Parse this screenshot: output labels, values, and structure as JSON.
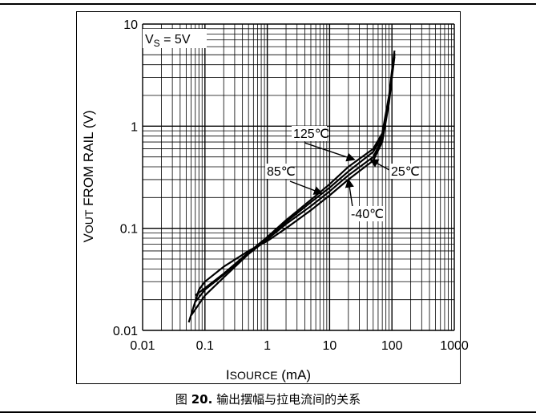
{
  "caption": {
    "prefix": "图",
    "number": "20.",
    "text": "输出摆幅与拉电流间的关系"
  },
  "chart_data": {
    "type": "line",
    "x_scale": "log",
    "y_scale": "log",
    "xlim": [
      0.01,
      1000
    ],
    "ylim": [
      0.01,
      10
    ],
    "grid": true,
    "x_ticks": [
      "0.01",
      "0.1",
      "1",
      "10",
      "100",
      "1000"
    ],
    "y_ticks": [
      "0.01",
      "0.1",
      "1",
      "10"
    ],
    "xlabel": {
      "main": "I",
      "sub": "SOURCE",
      "unit": " (mA)"
    },
    "ylabel": {
      "main": "V",
      "sub": "OUT",
      "rest": " FROM RAIL (V)"
    },
    "condition": {
      "main": "V",
      "sub": "S",
      "rest": " = 5V"
    },
    "series": [
      {
        "name": "125℃",
        "x": [
          0.07,
          0.1,
          0.2,
          0.5,
          1,
          2,
          5,
          10,
          20,
          50,
          70,
          90,
          100,
          110
        ],
        "y": [
          0.022,
          0.026,
          0.036,
          0.058,
          0.082,
          0.12,
          0.19,
          0.27,
          0.4,
          0.6,
          0.85,
          2.0,
          3.5,
          5.5
        ]
      },
      {
        "name": "85℃",
        "x": [
          0.07,
          0.1,
          0.2,
          0.5,
          1,
          2,
          5,
          10,
          20,
          50,
          70,
          90,
          100,
          110
        ],
        "y": [
          0.019,
          0.025,
          0.035,
          0.057,
          0.08,
          0.115,
          0.18,
          0.25,
          0.36,
          0.56,
          0.8,
          1.9,
          3.3,
          5.2
        ]
      },
      {
        "name": "25℃",
        "x": [
          0.06,
          0.1,
          0.2,
          0.5,
          1,
          2,
          5,
          10,
          20,
          50,
          70,
          90,
          100,
          110
        ],
        "y": [
          0.014,
          0.022,
          0.033,
          0.056,
          0.078,
          0.11,
          0.165,
          0.23,
          0.33,
          0.5,
          0.75,
          1.8,
          3.2,
          5.0
        ]
      },
      {
        "name": "-40℃",
        "x": [
          0.055,
          0.08,
          0.1,
          0.2,
          0.5,
          1,
          2,
          5,
          10,
          20,
          50,
          70,
          90,
          100,
          110
        ],
        "y": [
          0.012,
          0.025,
          0.03,
          0.042,
          0.06,
          0.075,
          0.1,
          0.15,
          0.21,
          0.3,
          0.46,
          0.7,
          1.7,
          3.0,
          4.8
        ]
      }
    ],
    "annotations": [
      {
        "text": "125℃",
        "target_series": "125℃",
        "at_x": 25,
        "at_y": 0.47
      },
      {
        "text": "25℃",
        "target_series": "25℃",
        "at_x": 45,
        "at_y": 0.47
      },
      {
        "text": "85℃",
        "target_series": "85℃",
        "at_x": 7.5,
        "at_y": 0.22
      },
      {
        "text": "-40℃",
        "target_series": "-40℃",
        "at_x": 20,
        "at_y": 0.3
      }
    ]
  }
}
